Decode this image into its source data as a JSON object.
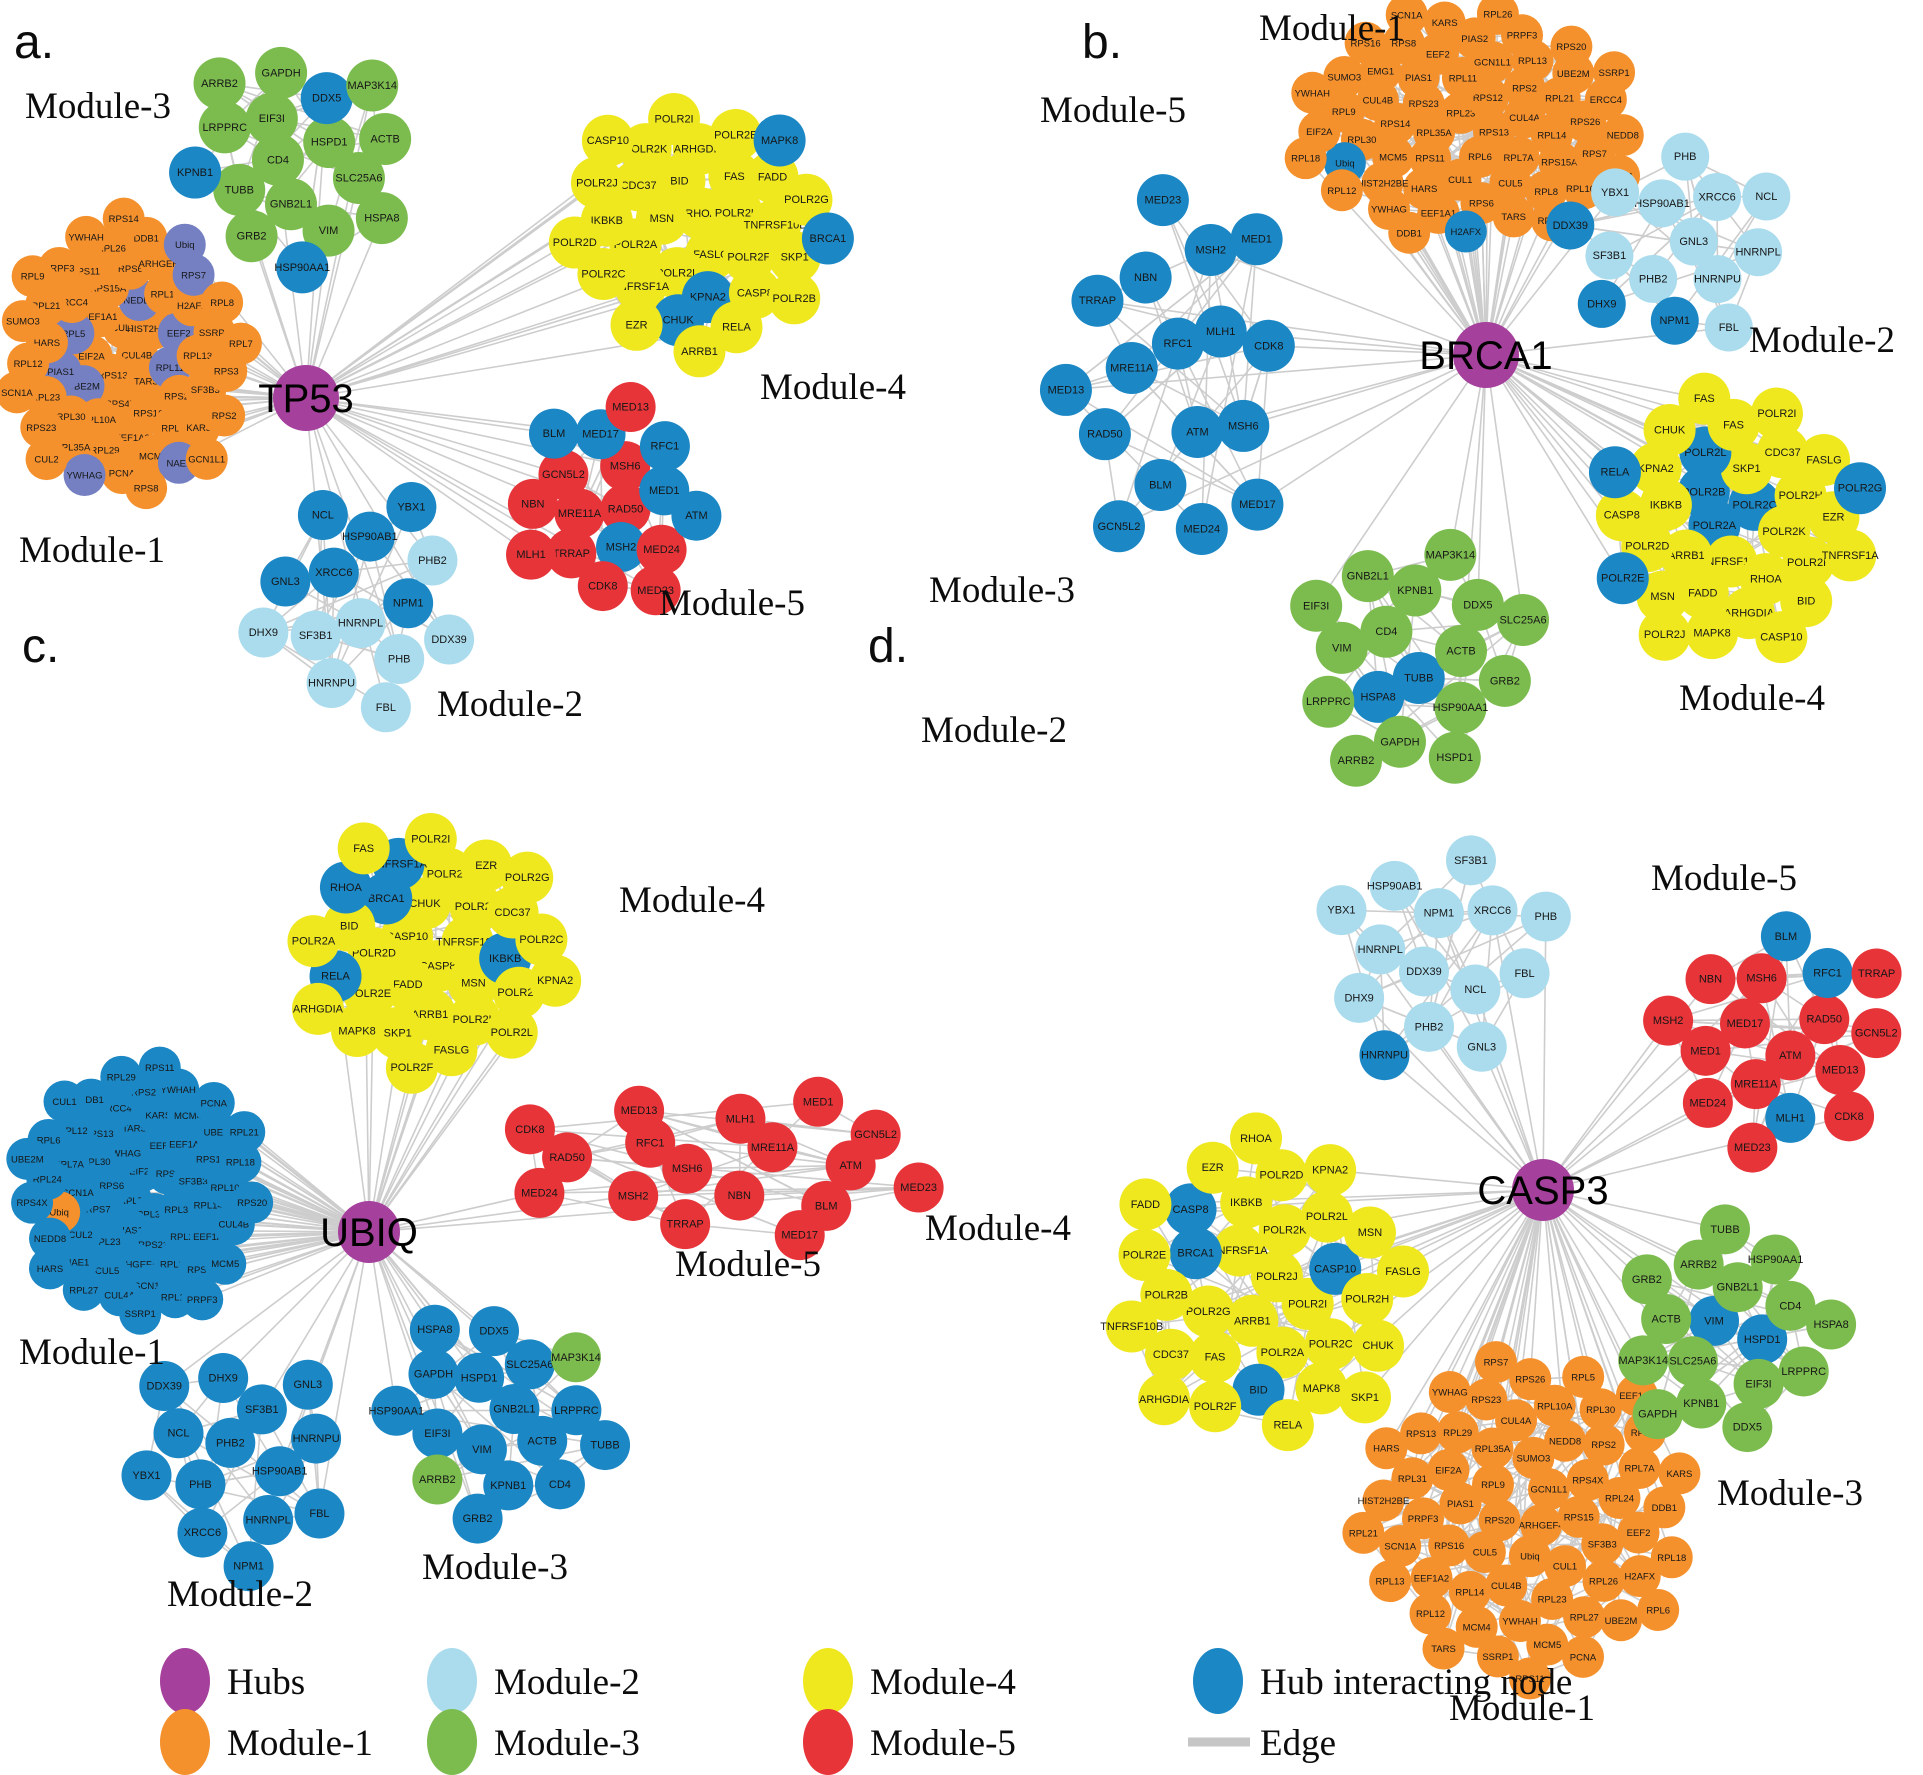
{
  "colors": {
    "hubs": "#a5409c",
    "module1": "#f5912d",
    "module2": "#aadced",
    "module3": "#7cbc4e",
    "module4": "#efe81f",
    "module5": "#e73439",
    "hub_interacting": "#1b87c5",
    "periwinkle": "#7480c2",
    "edge": "#cdcdcd"
  },
  "legend": {
    "items": [
      {
        "label": "Hubs",
        "color": "hubs"
      },
      {
        "label": "Module-1",
        "color": "module1"
      },
      {
        "label": "Module-2",
        "color": "module2"
      },
      {
        "label": "Module-3",
        "color": "module3"
      },
      {
        "label": "Module-4",
        "color": "module4"
      },
      {
        "label": "Module-5",
        "color": "module5"
      },
      {
        "label": "Hub interacting node",
        "color": "hub_interacting"
      },
      {
        "label": "Edge",
        "edge": true
      }
    ]
  },
  "panels": [
    {
      "id": "a",
      "letter": "a.",
      "hub_label": "TP53",
      "modules": [
        {
          "name": "Module-1",
          "color": "module1",
          "nodes": [
            "CUL4B",
            "RPS13",
            "CUL1",
            "TARS",
            "EIF2A",
            "HIST2H2BE",
            "RPS4X",
            "EEF1A1",
            {
              "l": "RPL11",
              "c": "periwinkle"
            },
            {
              "l": "UBE2M",
              "c": "periwinkle"
            },
            {
              "l": "NEDD8",
              "c": "periwinkle"
            },
            "RPS16",
            {
              "l": "RPL5",
              "c": "periwinkle"
            },
            {
              "l": "EEF2",
              "c": "periwinkle"
            },
            "RPL10A",
            "RPS15A",
            "RPS20",
            {
              "l": "PIAS1",
              "c": "periwinkle"
            },
            "RPL14",
            "EEF1A2",
            "ERCC4",
            "RPL13",
            "RPL30",
            "RPS6",
            "RPL6",
            "HARS",
            "H2AFX",
            "RPL29",
            "RPS11",
            "SF3B3",
            "RPL23",
            "ARHGEF4",
            "MCM4",
            "RPL21",
            "SSRP1",
            "RPL35A",
            "RPL26",
            "KARS",
            "RPL12",
            {
              "l": "RPS7",
              "c": "periwinkle"
            },
            "PCNA",
            "PRPF3",
            "RPS3",
            "RPS23",
            "DDB1",
            {
              "l": "NAE1",
              "c": "periwinkle"
            },
            "SUMO3",
            "RPL8",
            {
              "l": "YWHAG",
              "c": "periwinkle"
            },
            "YWHAH",
            "RPS2",
            "SCN1A",
            {
              "l": "Ubiq",
              "c": "periwinkle"
            },
            "RPS8",
            "RPL9",
            "RPL7",
            "CUL2",
            "RPS14",
            "GCN1L1"
          ]
        },
        {
          "name": "Module-2",
          "color": "module2",
          "nodes": [
            "HNRNPL",
            {
              "l": "XRCC6",
              "c": "hub_interacting"
            },
            {
              "l": "NPM1",
              "c": "hub_interacting"
            },
            "SF3B1",
            {
              "l": "HSP90AB1",
              "c": "hub_interacting"
            },
            "PHB",
            {
              "l": "GNL3",
              "c": "hub_interacting"
            },
            "PHB2",
            "HNRNPU",
            {
              "l": "NCL",
              "c": "hub_interacting"
            },
            "DDX39",
            "DHX9",
            {
              "l": "YBX1",
              "c": "hub_interacting"
            },
            "FBL"
          ]
        },
        {
          "name": "Module-3",
          "color": "module3",
          "nodes": [
            "CD4",
            "HSPD1",
            "GNB2L1",
            "EIF3I",
            "SLC25A6",
            "TUBB",
            {
              "l": "DDX5",
              "c": "hub_interacting"
            },
            "VIM",
            "LRPPRC",
            "ACTB",
            "GRB2",
            "GAPDH",
            "HSPA8",
            {
              "l": "KPNB1",
              "c": "hub_interacting"
            },
            "MAP3K14",
            {
              "l": "HSP90AA1",
              "c": "hub_interacting"
            },
            "ARRB2"
          ]
        },
        {
          "name": "Module-4",
          "color": "module4",
          "nodes": [
            "RHOA",
            "FASLG",
            "MSN",
            "POLR2H",
            "POLR2L",
            "BID",
            "POLR2F",
            "POLR2A",
            "FAS",
            {
              "l": "KPNA2",
              "c": "hub_interacting"
            },
            "CDC37",
            "TNFRSF10B",
            "TNFRSF1A",
            "ARHGDIA",
            "CASP8",
            "IKBKB",
            "FADD",
            {
              "l": "CHUK",
              "c": "hub_interacting"
            },
            "POLR2K",
            "SKP1",
            "POLR2C",
            "POLR2E",
            "RELA",
            "POLR2J",
            "POLR2G",
            "EZR",
            "POLR2I",
            "POLR2B",
            "POLR2D",
            {
              "l": "MAPK8",
              "c": "hub_interacting"
            },
            "ARRB1",
            "CASP10",
            {
              "l": "BRCA1",
              "c": "hub_interacting"
            }
          ]
        },
        {
          "name": "Module-5",
          "color": "module5",
          "nodes": [
            "RAD50",
            "MRE11A",
            "MSH6",
            {
              "l": "MSH2",
              "c": "hub_interacting"
            },
            "GCN5L2",
            {
              "l": "MED1",
              "c": "hub_interacting"
            },
            "TRRAP",
            {
              "l": "MED17",
              "c": "hub_interacting"
            },
            "MED24",
            "NBN",
            {
              "l": "RFC1",
              "c": "hub_interacting"
            },
            "CDK8",
            {
              "l": "BLM",
              "c": "hub_interacting"
            },
            {
              "l": "ATM",
              "c": "hub_interacting"
            },
            "MLH1",
            "MED13",
            "MED23"
          ]
        }
      ]
    },
    {
      "id": "b",
      "letter": "b.",
      "hub_label": "BRCA1",
      "modules": [
        {
          "name": "Module-1",
          "color": "module1",
          "nodes": [
            "RPL23",
            "RPS13",
            "RPL35A",
            "RPS12",
            "RPL6",
            "RPS23",
            "CUL4A",
            "RPS11",
            "RPL11",
            "RPL7A",
            "RPS14",
            "RPS2",
            "CUL1",
            "PIAS1",
            "RPL14",
            "MCM5",
            "GCN1L1",
            "CUL5",
            "CUL4B",
            "RPL21",
            "HARS",
            "EEF2",
            "RPS15A",
            "RPL30",
            "RPL13",
            "RPS6",
            "EMG1",
            "RPS26",
            "HIST2H2BE",
            "PIAS2",
            "RPL8",
            "RPL9",
            "UBE2M",
            "EEF1A1",
            "RPS8",
            "RPS7",
            {
              "l": "Ubiq",
              "c": "hub_interacting"
            },
            "PRPF3",
            "TARS",
            "SUMO3",
            "ERCC4",
            "YWHAG",
            "KARS",
            "RPL10A",
            "EIF2A",
            "RPS20",
            {
              "l": "H2AFX",
              "c": "hub_interacting"
            },
            "RPS16",
            "NEDD8",
            "RPL12",
            "RPL26",
            "RPL29",
            "YWHAH",
            "SSRP1",
            "DDB1",
            "SCN1A",
            "RPL31",
            "RPL18"
          ]
        },
        {
          "name": "Module-2",
          "color": "module2",
          "nodes": [
            "GNL3",
            "PHB2",
            "HSP90AB1",
            "HNRNPU",
            "SF3B1",
            "XRCC6",
            {
              "l": "NPM1",
              "c": "hub_interacting"
            },
            "YBX1",
            "HNRNPL",
            {
              "l": "DHX9",
              "c": "hub_interacting"
            },
            "PHB",
            "FBL",
            {
              "l": "DDX39",
              "c": "hub_interacting"
            },
            "NCL"
          ]
        },
        {
          "name": "Module-3",
          "color": "module3",
          "nodes": [
            {
              "l": "TUBB",
              "c": "hub_interacting"
            },
            "CD4",
            "ACTB",
            {
              "l": "HSPA8",
              "c": "hub_interacting"
            },
            "KPNB1",
            "HSP90AA1",
            "VIM",
            "DDX5",
            "GAPDH",
            "GNB2L1",
            "GRB2",
            "LRPPRC",
            "MAP3K14",
            "HSPD1",
            "EIF3I",
            "SLC25A6",
            "ARRB2"
          ]
        },
        {
          "name": "Module-4",
          "color": "module4",
          "nodes": [
            {
              "l": "POLR2A",
              "c": "hub_interacting"
            },
            {
              "l": "POLR2C",
              "c": "hub_interacting"
            },
            "TNFRSF10B",
            {
              "l": "POLR2B",
              "c": "hub_interacting"
            },
            "POLR2K",
            "ARRB1",
            "SKP1",
            "RHOA",
            "IKBKB",
            "POLR2H",
            "FADD",
            {
              "l": "POLR2L",
              "c": "hub_interacting"
            },
            "POLR2F",
            "POLR2D",
            "CDC37",
            "ARHGDIA",
            "KPNA2",
            "EZR",
            "MSN",
            "FAS",
            "BID",
            "CASP8",
            "FASLG",
            "MAPK8",
            "CHUK",
            "TNFRSF1A",
            {
              "l": "POLR2E",
              "c": "hub_interacting"
            },
            "POLR2I",
            "CASP10",
            {
              "l": "RELA",
              "c": "hub_interacting"
            },
            {
              "l": "POLR2G",
              "c": "hub_interacting"
            },
            "POLR2J",
            "FAS"
          ]
        },
        {
          "name": "Module-5",
          "color": "hub_interacting",
          "nodes": [
            "RFC1",
            "ATM",
            "MRE11A",
            "MLH1",
            "BLM",
            "NBN",
            "MSH6",
            "RAD50",
            "MSH2",
            "MED24",
            "TRRAP",
            "CDK8",
            "GCN5L2",
            "MED23",
            "MED17",
            "MED13",
            "MED1"
          ]
        }
      ]
    },
    {
      "id": "c",
      "letter": "c.",
      "hub_label": "UBIQ",
      "modules": [
        {
          "name": "Module-1",
          "color": "hub_interacting",
          "nodes": [
            "RPL7",
            "EIF2A",
            "RPL35A",
            "RPS6",
            "RPS8",
            "PIAS1",
            "YWHAG",
            "RPL31",
            "RPS7",
            "EEF2",
            "RPS23",
            "RPL30",
            "SF3B3",
            "RPL23",
            "TARS",
            "RPL26",
            "SCN1A",
            "EEF1A2",
            "ARHGEF4",
            "RPS13",
            "RPL14",
            "CUL2",
            "KARS",
            "RPL13",
            "RPL7A",
            "RPS16",
            "CUL5",
            "ERCC4",
            "EEF1A1",
            {
              "l": "Ubiq",
              "c": "module1"
            },
            "MCM4",
            "GCN1L1",
            "RPL12",
            "RPL10A",
            "NAE1",
            "RPS2",
            "RPS3",
            "RPL24",
            "UBE2I",
            "CUL4A",
            "DDB1",
            "CUL4B",
            "NEDD8",
            "YWHAH",
            "RPL11",
            "RPL6",
            "RPL18",
            "RPL27",
            "RPL29",
            "MCM5",
            "RPS4X",
            "PCNA",
            "SSRP1",
            "CUL1",
            "RPS20",
            "HARS",
            "RPS11",
            "PRPF3",
            "UBE2M",
            "RPL21"
          ]
        },
        {
          "name": "Module-2",
          "color": "hub_interacting",
          "nodes": [
            "PHB2",
            "HSP90AB1",
            "PHB",
            "SF3B1",
            "HNRNPL",
            "NCL",
            "HNRNPU",
            "XRCC6",
            "DHX9",
            "FBL",
            "YBX1",
            "GNL3",
            "NPM1",
            "DDX39"
          ]
        },
        {
          "name": "Module-3",
          "color": "hub_interacting",
          "nodes": [
            "GNB2L1",
            "VIM",
            "HSPD1",
            "ACTB",
            "EIF3I",
            "SLC25A6",
            "KPNB1",
            "GAPDH",
            "LRPPRC",
            {
              "l": "ARRB2",
              "c": "module3"
            },
            "DDX5",
            "CD4",
            "HSP90AA1",
            {
              "l": "MAP3K14",
              "c": "module3"
            },
            "GRB2",
            "HSPA8",
            "TUBB"
          ]
        },
        {
          "name": "Module-4",
          "color": "module4",
          "nodes": [
            "CASP8",
            "CASP10",
            "TNFRSF10B",
            "FADD",
            "CHUK",
            "MSN",
            "POLR2D",
            "POLR2J",
            "ARRB1",
            {
              "l": "BRCA1",
              "c": "hub_interacting"
            },
            {
              "l": "IKBKB",
              "c": "hub_interacting"
            },
            "POLR2E",
            "POLR2B",
            "POLR2H",
            "BID",
            "CDC37",
            "SKP1",
            {
              "l": "TNFRSF1A",
              "c": "hub_interacting"
            },
            "POLR2K",
            {
              "l": "RELA",
              "c": "hub_interacting"
            },
            "EZR",
            "FASLG",
            {
              "l": "RHOA",
              "c": "hub_interacting"
            },
            "POLR2C",
            "MAPK8",
            "POLR2I",
            "POLR2L",
            "POLR2A",
            "POLR2G",
            "POLR2F",
            "FAS",
            "KPNA2",
            "ARHGDIA"
          ]
        },
        {
          "name": "Module-5",
          "color": "module5",
          "nodes": [
            "MSH6",
            "MRE11A",
            "NBN",
            "RFC1",
            "ATM",
            "MSH2",
            "MLH1",
            "BLM",
            "RAD50",
            "GCN5L2",
            "TRRAP",
            "MED13",
            "MED23",
            "MED24",
            "MED1",
            "MED17",
            "CDK8"
          ]
        }
      ]
    },
    {
      "id": "d",
      "letter": "d.",
      "hub_label": "CASP3",
      "modules": [
        {
          "name": "Module-1",
          "color": "module1",
          "nodes": [
            "ARHGEF4",
            "RPS20",
            "GCN1L1",
            "Ubiq",
            "RPL9",
            "RPS15",
            "CUL5",
            "SUMO3",
            "CUL1",
            "PIAS1",
            "RPS4X",
            "CUL4B",
            "RPL35A",
            "SF3B3",
            "RPS16",
            "NEDD8",
            "RPL23",
            "EIF2A",
            "RPL24",
            "RPL14",
            "CUL4A",
            "RPL26",
            "PRPF3",
            "RPS2",
            "YWHAH",
            "RPL29",
            "EEF2",
            "EEF1A2",
            "RPL10A",
            "RPL27",
            "RPL31",
            "RPL7A",
            "MCM4",
            "RPS23",
            "H2AFX",
            "SCN1A",
            "RPL30",
            "MCM5",
            "RPS13",
            "DDB1",
            "RPL12",
            "RPS26",
            "UBE2M",
            "HIST2H2BE",
            "RPL11",
            "SSRP1",
            "YWHAG",
            "RPL18",
            "RPL13",
            "RPL5",
            "PCNA",
            "HARS",
            "KARS",
            "TARS",
            "RPS7",
            "RPL6",
            "RPL21",
            "EEF1A1",
            "RPS11"
          ]
        },
        {
          "name": "Module-2",
          "color": "module2",
          "nodes": [
            "DDX39",
            "NPM1",
            "NCL",
            "HNRNPL",
            "XRCC6",
            "PHB2",
            "HSP90AB1",
            "FBL",
            "DHX9",
            "SF3B1",
            "GNL3",
            "YBX1",
            "PHB",
            {
              "l": "HNRNPU",
              "c": "hub_interacting"
            }
          ]
        },
        {
          "name": "Module-3",
          "color": "module3",
          "nodes": [
            {
              "l": "VIM",
              "c": "hub_interacting"
            },
            {
              "l": "HSPD1",
              "c": "hub_interacting"
            },
            "SLC25A6",
            "GNB2L1",
            "EIF3I",
            "ACTB",
            "CD4",
            "KPNB1",
            "ARRB2",
            "LRPPRC",
            "MAP3K14",
            "HSP90AA1",
            "DDX5",
            "GRB2",
            "HSPA8",
            "GAPDH",
            "TUBB"
          ]
        },
        {
          "name": "Module-4",
          "color": "module4",
          "nodes": [
            "POLR2J",
            "ARRB1",
            "TNFRSF1A",
            "POLR2I",
            "POLR2G",
            "POLR2K",
            "POLR2A",
            {
              "l": "BRCA1",
              "c": "hub_interacting"
            },
            {
              "l": "CASP10",
              "c": "hub_interacting"
            },
            "FAS",
            "IKBKB",
            "POLR2C",
            "POLR2B",
            "POLR2L",
            {
              "l": "BID",
              "c": "hub_interacting"
            },
            {
              "l": "CASP8",
              "c": "hub_interacting"
            },
            "POLR2H",
            "CDC37",
            "POLR2D",
            "MAPK8",
            "POLR2E",
            "MSN",
            "POLR2F",
            "EZR",
            "CHUK",
            "TNFRSF10B",
            "KPNA2",
            "RELA",
            "FADD",
            "FASLG",
            "ARHGDIA",
            "RHOA",
            "SKP1"
          ]
        },
        {
          "name": "Module-5",
          "color": "module5",
          "nodes": [
            "ATM",
            "MED17",
            "RAD50",
            "MRE11A",
            "MSH6",
            "MED13",
            "MED1",
            {
              "l": "RFC1",
              "c": "hub_interacting"
            },
            {
              "l": "MLH1",
              "c": "hub_interacting"
            },
            "NBN",
            "GCN5L2",
            "MED24",
            {
              "l": "BLM",
              "c": "hub_interacting"
            },
            "CDK8",
            "MSH2",
            "TRRAP",
            "MED23"
          ]
        }
      ]
    }
  ]
}
